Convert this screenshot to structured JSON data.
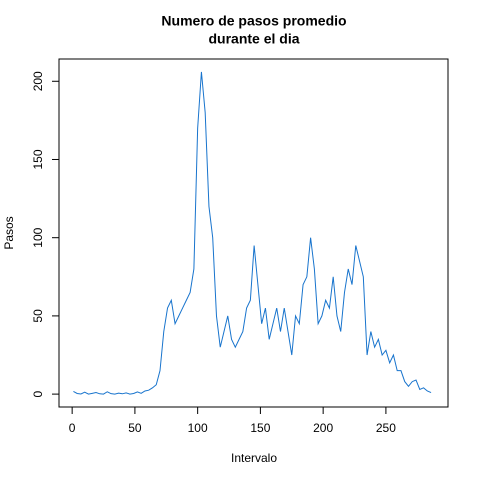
{
  "chart_data": {
    "type": "line",
    "title": [
      "Numero de pasos promedio",
      "durante el dia"
    ],
    "x_label": "Intervalo",
    "y_label": "Pasos",
    "color": "#1874CD",
    "x": [
      1,
      4,
      7,
      10,
      13,
      16,
      19,
      22,
      25,
      28,
      31,
      34,
      37,
      40,
      43,
      46,
      49,
      52,
      55,
      58,
      61,
      64,
      67,
      70,
      73,
      76,
      79,
      82,
      85,
      88,
      91,
      94,
      97,
      100,
      103,
      106,
      109,
      112,
      115,
      118,
      121,
      124,
      127,
      130,
      133,
      136,
      139,
      142,
      145,
      148,
      151,
      154,
      157,
      160,
      163,
      166,
      169,
      172,
      175,
      178,
      181,
      184,
      187,
      190,
      193,
      196,
      199,
      202,
      205,
      208,
      211,
      214,
      217,
      220,
      223,
      226,
      229,
      232,
      235,
      238,
      241,
      244,
      247,
      250,
      253,
      256,
      259,
      262,
      265,
      268,
      271,
      274,
      277,
      280,
      283,
      286
    ],
    "values": [
      1.7,
      0.4,
      0.1,
      1.2,
      0,
      0.5,
      1,
      0.2,
      0,
      1.5,
      0.3,
      0,
      0.6,
      0.2,
      0.8,
      0,
      0.4,
      1.4,
      0.5,
      2,
      2.5,
      4,
      6,
      15,
      40,
      55,
      60,
      45,
      50,
      55,
      60,
      65,
      80,
      170,
      206,
      180,
      120,
      100,
      50,
      30,
      40,
      50,
      35,
      30,
      35,
      40,
      55,
      60,
      95,
      70,
      45,
      55,
      35,
      45,
      55,
      40,
      55,
      40,
      25,
      50,
      45,
      70,
      75,
      100,
      80,
      45,
      50,
      60,
      55,
      75,
      50,
      40,
      65,
      80,
      70,
      95,
      85,
      75,
      25,
      40,
      30,
      35,
      25,
      28,
      20,
      25,
      15,
      15,
      8,
      5,
      8,
      9,
      3,
      4,
      2,
      1
    ],
    "xlim": [
      -10.48,
      299.48
    ],
    "ylim": [
      -8.24,
      214.24
    ],
    "xticks": [
      0,
      50,
      100,
      150,
      200,
      250
    ],
    "yticks": [
      0,
      50,
      100,
      150,
      200
    ]
  }
}
